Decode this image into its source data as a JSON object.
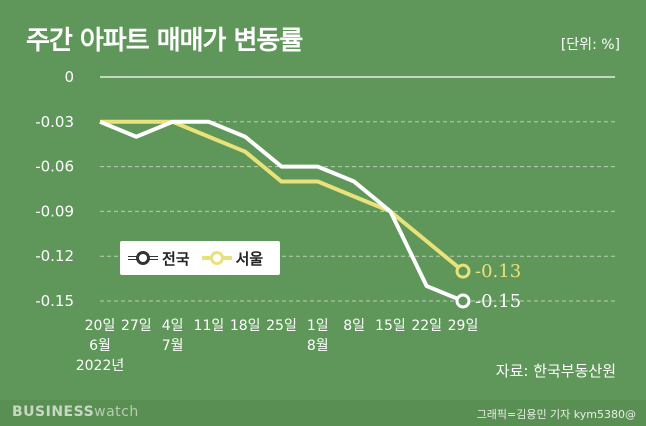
{
  "header": {
    "title": "주간 아파트 매매가 변동률",
    "unit": "[단위: %]"
  },
  "source": "자료: 한국부동산원",
  "footer": {
    "brand_main": "BUSINESS",
    "brand_sub": "watch",
    "credit": "그래픽=김용민 기자 kym5380@"
  },
  "legend": {
    "series_a": "전국",
    "series_b": "서울"
  },
  "colors": {
    "background": "#5f9659",
    "national": "#ffffff",
    "seoul": "#e9e27a"
  },
  "chart_data": {
    "type": "line",
    "title": "주간 아파트 매매가 변동률",
    "unit": "[단위: %]",
    "x_ticks": [
      [
        "20일",
        "6월",
        "2022년"
      ],
      [
        "27일"
      ],
      [
        "4일",
        "7월"
      ],
      [
        "11일"
      ],
      [
        "18일"
      ],
      [
        "25일"
      ],
      [
        "1일",
        "8월"
      ],
      [
        "8일"
      ],
      [
        "15일"
      ],
      [
        "22일"
      ],
      [
        "29일"
      ]
    ],
    "yticks": [
      "0",
      "-0.03",
      "-0.06",
      "-0.09",
      "-0.12",
      "-0.15"
    ],
    "ylim": [
      -0.15,
      0
    ],
    "grid": true,
    "legend_position": "bottom-left",
    "series": [
      {
        "name": "전국",
        "values": [
          -0.03,
          -0.04,
          -0.03,
          -0.03,
          -0.04,
          -0.06,
          -0.06,
          -0.07,
          -0.09,
          -0.14,
          -0.15
        ],
        "end_label": "-0.15"
      },
      {
        "name": "서울",
        "values": [
          -0.03,
          -0.03,
          -0.03,
          -0.04,
          -0.05,
          -0.07,
          -0.07,
          -0.08,
          -0.09,
          -0.11,
          -0.13
        ],
        "end_label": "-0.13"
      }
    ]
  }
}
